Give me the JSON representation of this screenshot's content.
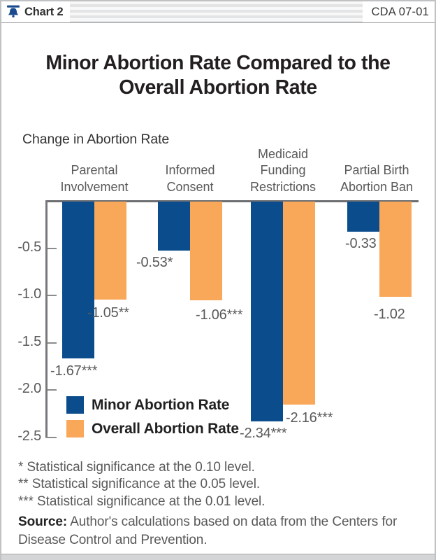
{
  "header": {
    "chart_label": "Chart 2",
    "doc_code": "CDA 07-01",
    "logo": "liberty-bell-icon"
  },
  "title_lines": [
    "Minor Abortion Rate Compared to the",
    "Overall Abortion Rate"
  ],
  "chart_data": {
    "type": "bar",
    "title": "Minor Abortion Rate Compared to the Overall Abortion Rate",
    "axis_heading": "Change in Abortion Rate",
    "categories": [
      "Parental\nInvolvement",
      "Informed\nConsent",
      "Medicaid\nFunding\nRestrictions",
      "Partial Birth\nAbortion Ban"
    ],
    "series": [
      {
        "name": "Minor Abortion Rate",
        "color": "#0B4D8C",
        "values": [
          -1.67,
          -0.53,
          -2.34,
          -0.33
        ],
        "value_labels": [
          "-1.67***",
          "-0.53*",
          "-2.34***",
          "-0.33"
        ]
      },
      {
        "name": "Overall Abortion Rate",
        "color": "#F9A85A",
        "values": [
          -1.05,
          -1.06,
          -2.16,
          -1.02
        ],
        "value_labels": [
          "-1.05**",
          "-1.06***",
          "-2.16***",
          "-1.02"
        ]
      }
    ],
    "y_ticks": [
      -0.5,
      -1.0,
      -1.5,
      -2.0,
      -2.5
    ],
    "y_tick_labels": [
      "-0.5",
      "-1.0",
      "-1.5",
      "-2.0",
      "-2.5"
    ],
    "ylim": [
      0,
      -2.5
    ],
    "grid": false,
    "legend_position": "inside bottom-left"
  },
  "footnotes": [
    "* Statistical significance at the 0.10 level.",
    "** Statistical significance at the 0.05 level.",
    "*** Statistical significance at the 0.01 level."
  ],
  "source": {
    "label": "Source:",
    "text": "Author's calculations based on data from the Centers for Disease Control and Prevention."
  },
  "colors": {
    "minor_series": "#0B4D8C",
    "overall_series": "#F9A85A",
    "axis": "#6D6E71",
    "muted_text": "#58595B",
    "dark_text": "#231F20"
  }
}
